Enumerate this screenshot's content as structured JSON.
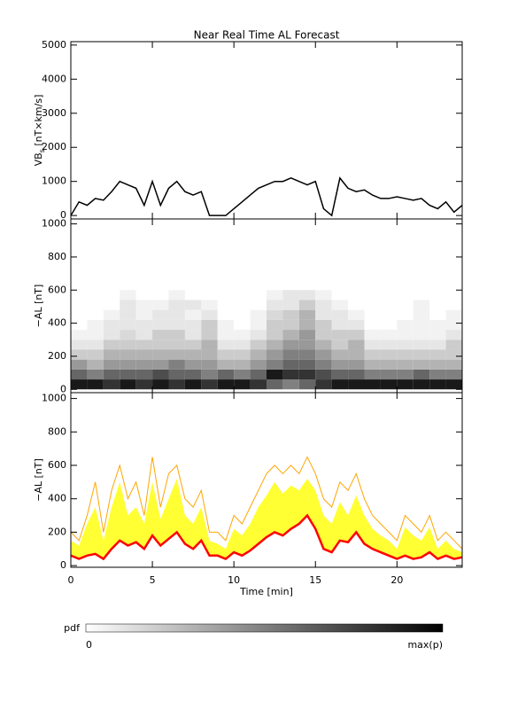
{
  "chart_data": [
    {
      "type": "line",
      "title": "Near Real Time AL Forecast",
      "ylabel": "VB",
      "ylabel_sub": "s",
      "ylabel_unit": " [nT×km/s]",
      "x": [
        0,
        0.5,
        1,
        1.5,
        2,
        2.5,
        3,
        3.5,
        4,
        4.5,
        5,
        5.5,
        6,
        6.5,
        7,
        7.5,
        8,
        8.5,
        9,
        9.5,
        10,
        10.5,
        11,
        11.5,
        12,
        12.5,
        13,
        13.5,
        14,
        14.5,
        15,
        15.5,
        16,
        16.5,
        17,
        17.5,
        18,
        18.5,
        19,
        19.5,
        20,
        20.5,
        21,
        21.5,
        22,
        22.5,
        23,
        23.5,
        24
      ],
      "series": [
        {
          "color": "#000000",
          "values": [
            0,
            400,
            300,
            500,
            450,
            700,
            1000,
            900,
            800,
            300,
            1000,
            300,
            800,
            1000,
            700,
            600,
            700,
            0,
            0,
            0,
            200,
            400,
            600,
            800,
            900,
            1000,
            1000,
            1100,
            1000,
            900,
            1000,
            200,
            0,
            1100,
            800,
            700,
            750,
            600,
            500,
            500,
            550,
            500,
            450,
            500,
            300,
            200,
            400,
            100,
            300
          ]
        }
      ],
      "xlim": [
        0,
        24
      ],
      "xticks": [
        0,
        5,
        10,
        15,
        20
      ],
      "ylim": [
        -100,
        5100
      ],
      "yticks": [
        0,
        1000,
        2000,
        3000,
        4000,
        5000
      ]
    },
    {
      "type": "heatmap",
      "ylabel": "−AL [nT]",
      "x_bins": [
        0,
        1,
        2,
        3,
        4,
        5,
        6,
        7,
        8,
        9,
        10,
        11,
        12,
        13,
        14,
        15,
        16,
        17,
        18,
        19,
        20,
        21,
        22,
        23,
        24
      ],
      "y_bins": [
        0,
        60,
        120,
        180,
        240,
        300,
        360,
        420,
        480,
        540,
        600
      ],
      "z": [
        [
          0.9,
          0.6,
          0.4,
          0.2,
          0.1,
          0.05,
          0,
          0,
          0,
          0
        ],
        [
          0.9,
          0.5,
          0.3,
          0.2,
          0.1,
          0.05,
          0.05,
          0,
          0,
          0
        ],
        [
          0.8,
          0.6,
          0.4,
          0.3,
          0.2,
          0.1,
          0.1,
          0.05,
          0,
          0
        ],
        [
          0.9,
          0.6,
          0.4,
          0.3,
          0.2,
          0.15,
          0.1,
          0.1,
          0.1,
          0.05
        ],
        [
          0.8,
          0.6,
          0.4,
          0.3,
          0.2,
          0.1,
          0.1,
          0.05,
          0.05,
          0
        ],
        [
          0.9,
          0.7,
          0.4,
          0.3,
          0.2,
          0.2,
          0.1,
          0.1,
          0.05,
          0
        ],
        [
          0.8,
          0.6,
          0.5,
          0.3,
          0.2,
          0.2,
          0.1,
          0.1,
          0.1,
          0.05
        ],
        [
          0.9,
          0.6,
          0.4,
          0.3,
          0.2,
          0.1,
          0.1,
          0.05,
          0.1,
          0
        ],
        [
          0.8,
          0.5,
          0.4,
          0.3,
          0.3,
          0.2,
          0.2,
          0.1,
          0.05,
          0
        ],
        [
          0.9,
          0.6,
          0.3,
          0.2,
          0.1,
          0.05,
          0.05,
          0,
          0,
          0
        ],
        [
          0.9,
          0.5,
          0.3,
          0.2,
          0.1,
          0.05,
          0,
          0,
          0,
          0
        ],
        [
          0.8,
          0.6,
          0.4,
          0.3,
          0.2,
          0.1,
          0.05,
          0.05,
          0,
          0
        ],
        [
          0.6,
          0.9,
          0.5,
          0.4,
          0.3,
          0.2,
          0.2,
          0.15,
          0.1,
          0.05
        ],
        [
          0.5,
          0.8,
          0.6,
          0.5,
          0.4,
          0.3,
          0.2,
          0.2,
          0.1,
          0.1
        ],
        [
          0.6,
          0.8,
          0.6,
          0.5,
          0.4,
          0.4,
          0.3,
          0.3,
          0.2,
          0.1
        ],
        [
          0.8,
          0.7,
          0.5,
          0.4,
          0.3,
          0.2,
          0.2,
          0.1,
          0.1,
          0.05
        ],
        [
          0.9,
          0.6,
          0.4,
          0.3,
          0.2,
          0.2,
          0.1,
          0.1,
          0.05,
          0
        ],
        [
          0.9,
          0.6,
          0.4,
          0.3,
          0.3,
          0.2,
          0.1,
          0.05,
          0,
          0
        ],
        [
          0.9,
          0.5,
          0.3,
          0.2,
          0.1,
          0.05,
          0,
          0,
          0,
          0
        ],
        [
          0.9,
          0.5,
          0.3,
          0.2,
          0.1,
          0.05,
          0,
          0,
          0,
          0
        ],
        [
          0.9,
          0.5,
          0.3,
          0.2,
          0.1,
          0.05,
          0.05,
          0,
          0,
          0
        ],
        [
          0.9,
          0.6,
          0.3,
          0.2,
          0.1,
          0.05,
          0.05,
          0.05,
          0.05,
          0
        ],
        [
          0.9,
          0.5,
          0.3,
          0.2,
          0.1,
          0.05,
          0.05,
          0,
          0,
          0
        ],
        [
          0.9,
          0.5,
          0.3,
          0.2,
          0.2,
          0.1,
          0.05,
          0.05,
          0,
          0
        ]
      ],
      "xlim": [
        0,
        24
      ],
      "xticks": [
        0,
        5,
        10,
        15,
        20
      ],
      "ylim": [
        -20,
        1030
      ],
      "yticks": [
        0,
        200,
        400,
        600,
        800,
        1000
      ]
    },
    {
      "type": "band",
      "ylabel": "−AL [nT]",
      "xlabel": "Time [min]",
      "x": [
        0,
        0.5,
        1,
        1.5,
        2,
        2.5,
        3,
        3.5,
        4,
        4.5,
        5,
        5.5,
        6,
        6.5,
        7,
        7.5,
        8,
        8.5,
        9,
        9.5,
        10,
        10.5,
        11,
        11.5,
        12,
        12.5,
        13,
        13.5,
        14,
        14.5,
        15,
        15.5,
        16,
        16.5,
        17,
        17.5,
        18,
        18.5,
        19,
        19.5,
        20,
        20.5,
        21,
        21.5,
        22,
        22.5,
        23,
        23.5,
        24
      ],
      "band_upper": [
        150,
        120,
        250,
        350,
        150,
        350,
        500,
        300,
        350,
        250,
        500,
        280,
        400,
        520,
        300,
        250,
        350,
        150,
        130,
        100,
        220,
        180,
        250,
        350,
        420,
        500,
        430,
        480,
        450,
        520,
        450,
        300,
        250,
        380,
        300,
        420,
        300,
        220,
        180,
        150,
        100,
        230,
        180,
        150,
        230,
        100,
        150,
        100,
        80
      ],
      "band_color": "#ffff33",
      "series": [
        {
          "color": "#ffa500",
          "values": [
            200,
            150,
            300,
            500,
            200,
            450,
            600,
            400,
            500,
            300,
            650,
            350,
            550,
            600,
            400,
            350,
            450,
            200,
            200,
            150,
            300,
            250,
            350,
            450,
            550,
            600,
            550,
            600,
            550,
            650,
            550,
            400,
            350,
            500,
            450,
            550,
            400,
            300,
            250,
            200,
            150,
            300,
            250,
            200,
            300,
            150,
            200,
            150,
            100
          ]
        },
        {
          "color": "#ff0000",
          "values": [
            60,
            40,
            60,
            70,
            40,
            100,
            150,
            120,
            140,
            100,
            180,
            120,
            160,
            200,
            130,
            100,
            150,
            60,
            60,
            40,
            80,
            60,
            90,
            130,
            170,
            200,
            180,
            220,
            250,
            300,
            220,
            100,
            80,
            150,
            140,
            200,
            130,
            100,
            80,
            60,
            40,
            60,
            40,
            50,
            80,
            40,
            60,
            40,
            50
          ]
        }
      ],
      "xlim": [
        0,
        24
      ],
      "xticks": [
        0,
        5,
        10,
        15,
        20
      ],
      "ylim": [
        -10,
        1035
      ],
      "yticks": [
        0,
        200,
        400,
        600,
        800,
        1000
      ]
    }
  ],
  "colorbar": {
    "label": "pdf",
    "min_label": "0",
    "max_label": "max(p)"
  }
}
